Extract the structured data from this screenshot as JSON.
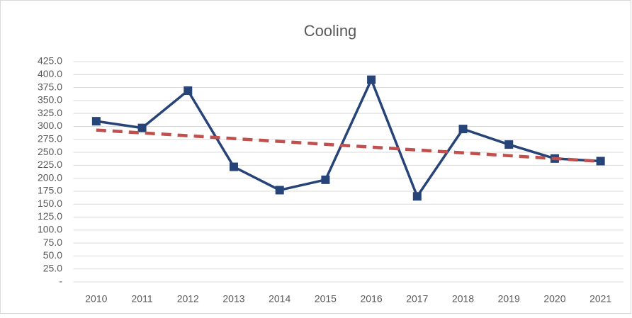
{
  "chart_data": {
    "type": "line",
    "title": "Cooling",
    "categories": [
      "2010",
      "2011",
      "2012",
      "2013",
      "2014",
      "2015",
      "2016",
      "2017",
      "2018",
      "2019",
      "2020",
      "2021"
    ],
    "series": [
      {
        "color": "#264478",
        "values": [
          310,
          297,
          369,
          222,
          177,
          197,
          390,
          165,
          295,
          265,
          238,
          233
        ],
        "marker": "square"
      },
      {
        "color": "#c0504d",
        "values": [
          293,
          287.5,
          282,
          276.5,
          271,
          265.5,
          260,
          254.5,
          249,
          243.5,
          238,
          232.5
        ],
        "dashed": true
      }
    ],
    "ylim": [
      0,
      425
    ],
    "yticks": [
      {
        "value": 0,
        "label": "-"
      },
      {
        "value": 25,
        "label": "25.0"
      },
      {
        "value": 50,
        "label": "50.0"
      },
      {
        "value": 75,
        "label": "75.0"
      },
      {
        "value": 100,
        "label": "100.0"
      },
      {
        "value": 125,
        "label": "125.0"
      },
      {
        "value": 150,
        "label": "150.0"
      },
      {
        "value": 175,
        "label": "175.0"
      },
      {
        "value": 200,
        "label": "200.0"
      },
      {
        "value": 225,
        "label": "225.0"
      },
      {
        "value": 250,
        "label": "250.0"
      },
      {
        "value": 275,
        "label": "275.0"
      },
      {
        "value": 300,
        "label": "300.0"
      },
      {
        "value": 325,
        "label": "325.0"
      },
      {
        "value": 350,
        "label": "350.0"
      },
      {
        "value": 375,
        "label": "375.0"
      },
      {
        "value": 400,
        "label": "400.0"
      },
      {
        "value": 425,
        "label": "425.0"
      }
    ],
    "grid": true
  }
}
